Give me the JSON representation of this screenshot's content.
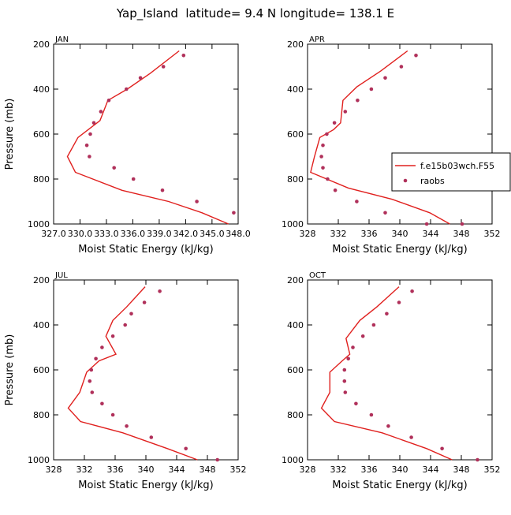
{
  "title": "Yap_Island  latitude= 9.4 N longitude= 138.1 E",
  "colors": {
    "model": "#e0201e",
    "obs": "#b0305a"
  },
  "legend": {
    "model": "f.e15b03wch.F55",
    "obs": "raobs"
  },
  "chart_data": [
    {
      "type": "line",
      "title": "JAN",
      "xlabel": "Moist Static Energy (kJ/kg)",
      "ylabel": "Pressure (mb)",
      "xlim": [
        327.03,
        348.0
      ],
      "ylim": [
        1000,
        200
      ],
      "xticks": [
        327.03,
        330.03,
        333.03,
        336.03,
        339.03,
        342.03,
        345.03,
        348.0
      ],
      "xtick_labels": [
        "327.0",
        "330.0",
        "333.0",
        "336.0",
        "339.0",
        "342.0",
        "345.0",
        "348.0"
      ],
      "yticks": [
        200,
        400,
        600,
        800,
        1000
      ],
      "ytick_labels": [
        "200",
        "400",
        "600",
        "800",
        "1000"
      ],
      "series": [
        {
          "name": "f.e15b03wch.F55",
          "kind": "line",
          "x": [
            341.3,
            338.0,
            335.4,
            333.2,
            332.3,
            329.8,
            328.6,
            329.5,
            334.8,
            340.1,
            343.9,
            346.9
          ],
          "y": [
            230,
            330,
            400,
            450,
            540,
            615,
            700,
            770,
            850,
            900,
            950,
            1000
          ]
        },
        {
          "name": "raobs",
          "kind": "scatter",
          "x": [
            341.8,
            339.5,
            336.9,
            335.3,
            333.3,
            332.4,
            331.6,
            331.2,
            330.8,
            331.1,
            333.9,
            336.1,
            339.4,
            343.3,
            347.5
          ],
          "y": [
            250,
            300,
            350,
            400,
            450,
            500,
            550,
            600,
            650,
            700,
            750,
            800,
            850,
            900,
            950
          ]
        }
      ]
    },
    {
      "type": "line",
      "title": "APR",
      "xlabel": "Moist Static Energy (kJ/kg)",
      "ylabel": "",
      "xlim": [
        328,
        352
      ],
      "ylim": [
        1000,
        200
      ],
      "xticks": [
        328,
        332,
        336,
        340,
        344,
        348,
        352
      ],
      "xtick_labels": [
        "328",
        "332",
        "336",
        "340",
        "344",
        "348",
        "352"
      ],
      "yticks": [
        200,
        400,
        600,
        800,
        1000
      ],
      "ytick_labels": [
        "200",
        "400",
        "600",
        "800",
        "1000"
      ],
      "series": [
        {
          "name": "f.e15b03wch.F55",
          "kind": "line",
          "x": [
            341.0,
            337.5,
            334.4,
            332.6,
            332.3,
            331.4,
            329.6,
            328.9,
            328.4,
            333.3,
            339.0,
            343.9,
            346.5
          ],
          "y": [
            230,
            320,
            390,
            450,
            550,
            580,
            615,
            700,
            770,
            840,
            890,
            950,
            1000
          ]
        },
        {
          "name": "raobs",
          "kind": "scatter",
          "x": [
            342.1,
            340.2,
            338.1,
            336.3,
            334.5,
            332.9,
            331.5,
            330.5,
            330.0,
            329.8,
            330.0,
            330.6,
            331.6,
            334.4,
            338.1,
            343.5,
            348.1
          ],
          "y": [
            250,
            300,
            350,
            400,
            450,
            500,
            550,
            600,
            650,
            700,
            750,
            800,
            850,
            900,
            950,
            1000,
            1000
          ]
        }
      ]
    },
    {
      "type": "line",
      "title": "JUL",
      "xlabel": "Moist Static Energy (kJ/kg)",
      "ylabel": "Pressure (mb)",
      "xlim": [
        328,
        352
      ],
      "ylim": [
        1000,
        200
      ],
      "xticks": [
        328,
        332,
        336,
        340,
        344,
        348,
        352
      ],
      "xtick_labels": [
        "328",
        "332",
        "336",
        "340",
        "344",
        "348",
        "352"
      ],
      "yticks": [
        200,
        400,
        600,
        800,
        1000
      ],
      "ytick_labels": [
        "200",
        "400",
        "600",
        "800",
        "1000"
      ],
      "series": [
        {
          "name": "f.e15b03wch.F55",
          "kind": "line",
          "x": [
            339.9,
            337.5,
            335.7,
            334.8,
            336.1,
            333.9,
            332.3,
            331.4,
            329.9,
            331.5,
            337.0,
            342.8,
            346.7
          ],
          "y": [
            230,
            320,
            380,
            450,
            530,
            560,
            610,
            700,
            770,
            830,
            880,
            950,
            1000
          ]
        },
        {
          "name": "raobs",
          "kind": "scatter",
          "x": [
            341.8,
            339.8,
            338.1,
            337.3,
            335.7,
            334.3,
            333.5,
            332.9,
            332.7,
            333.0,
            334.3,
            335.7,
            337.5,
            340.7,
            345.2,
            349.3
          ],
          "y": [
            250,
            300,
            350,
            400,
            450,
            500,
            550,
            600,
            650,
            700,
            750,
            800,
            850,
            900,
            950,
            1000
          ]
        }
      ]
    },
    {
      "type": "line",
      "title": "OCT",
      "xlabel": "Moist Static Energy (kJ/kg)",
      "ylabel": "",
      "xlim": [
        328,
        352
      ],
      "ylim": [
        1000,
        200
      ],
      "xticks": [
        328,
        332,
        336,
        340,
        344,
        348,
        352
      ],
      "xtick_labels": [
        "328",
        "332",
        "336",
        "340",
        "344",
        "348",
        "352"
      ],
      "yticks": [
        200,
        400,
        600,
        800,
        1000
      ],
      "ytick_labels": [
        "200",
        "400",
        "600",
        "800",
        "1000"
      ],
      "series": [
        {
          "name": "f.e15b03wch.F55",
          "kind": "line",
          "x": [
            339.9,
            337.0,
            334.8,
            333.0,
            333.5,
            332.5,
            330.9,
            330.9,
            329.8,
            331.5,
            337.7,
            343.5,
            346.8
          ],
          "y": [
            230,
            320,
            380,
            460,
            530,
            560,
            610,
            700,
            770,
            830,
            880,
            950,
            1000
          ]
        },
        {
          "name": "raobs",
          "kind": "scatter",
          "x": [
            341.6,
            339.9,
            338.3,
            336.6,
            335.2,
            333.9,
            333.3,
            332.8,
            332.8,
            332.9,
            334.3,
            336.3,
            338.5,
            341.5,
            345.5,
            350.1
          ],
          "y": [
            250,
            300,
            350,
            400,
            450,
            500,
            550,
            600,
            650,
            700,
            750,
            800,
            850,
            900,
            950,
            1000
          ]
        }
      ]
    }
  ]
}
